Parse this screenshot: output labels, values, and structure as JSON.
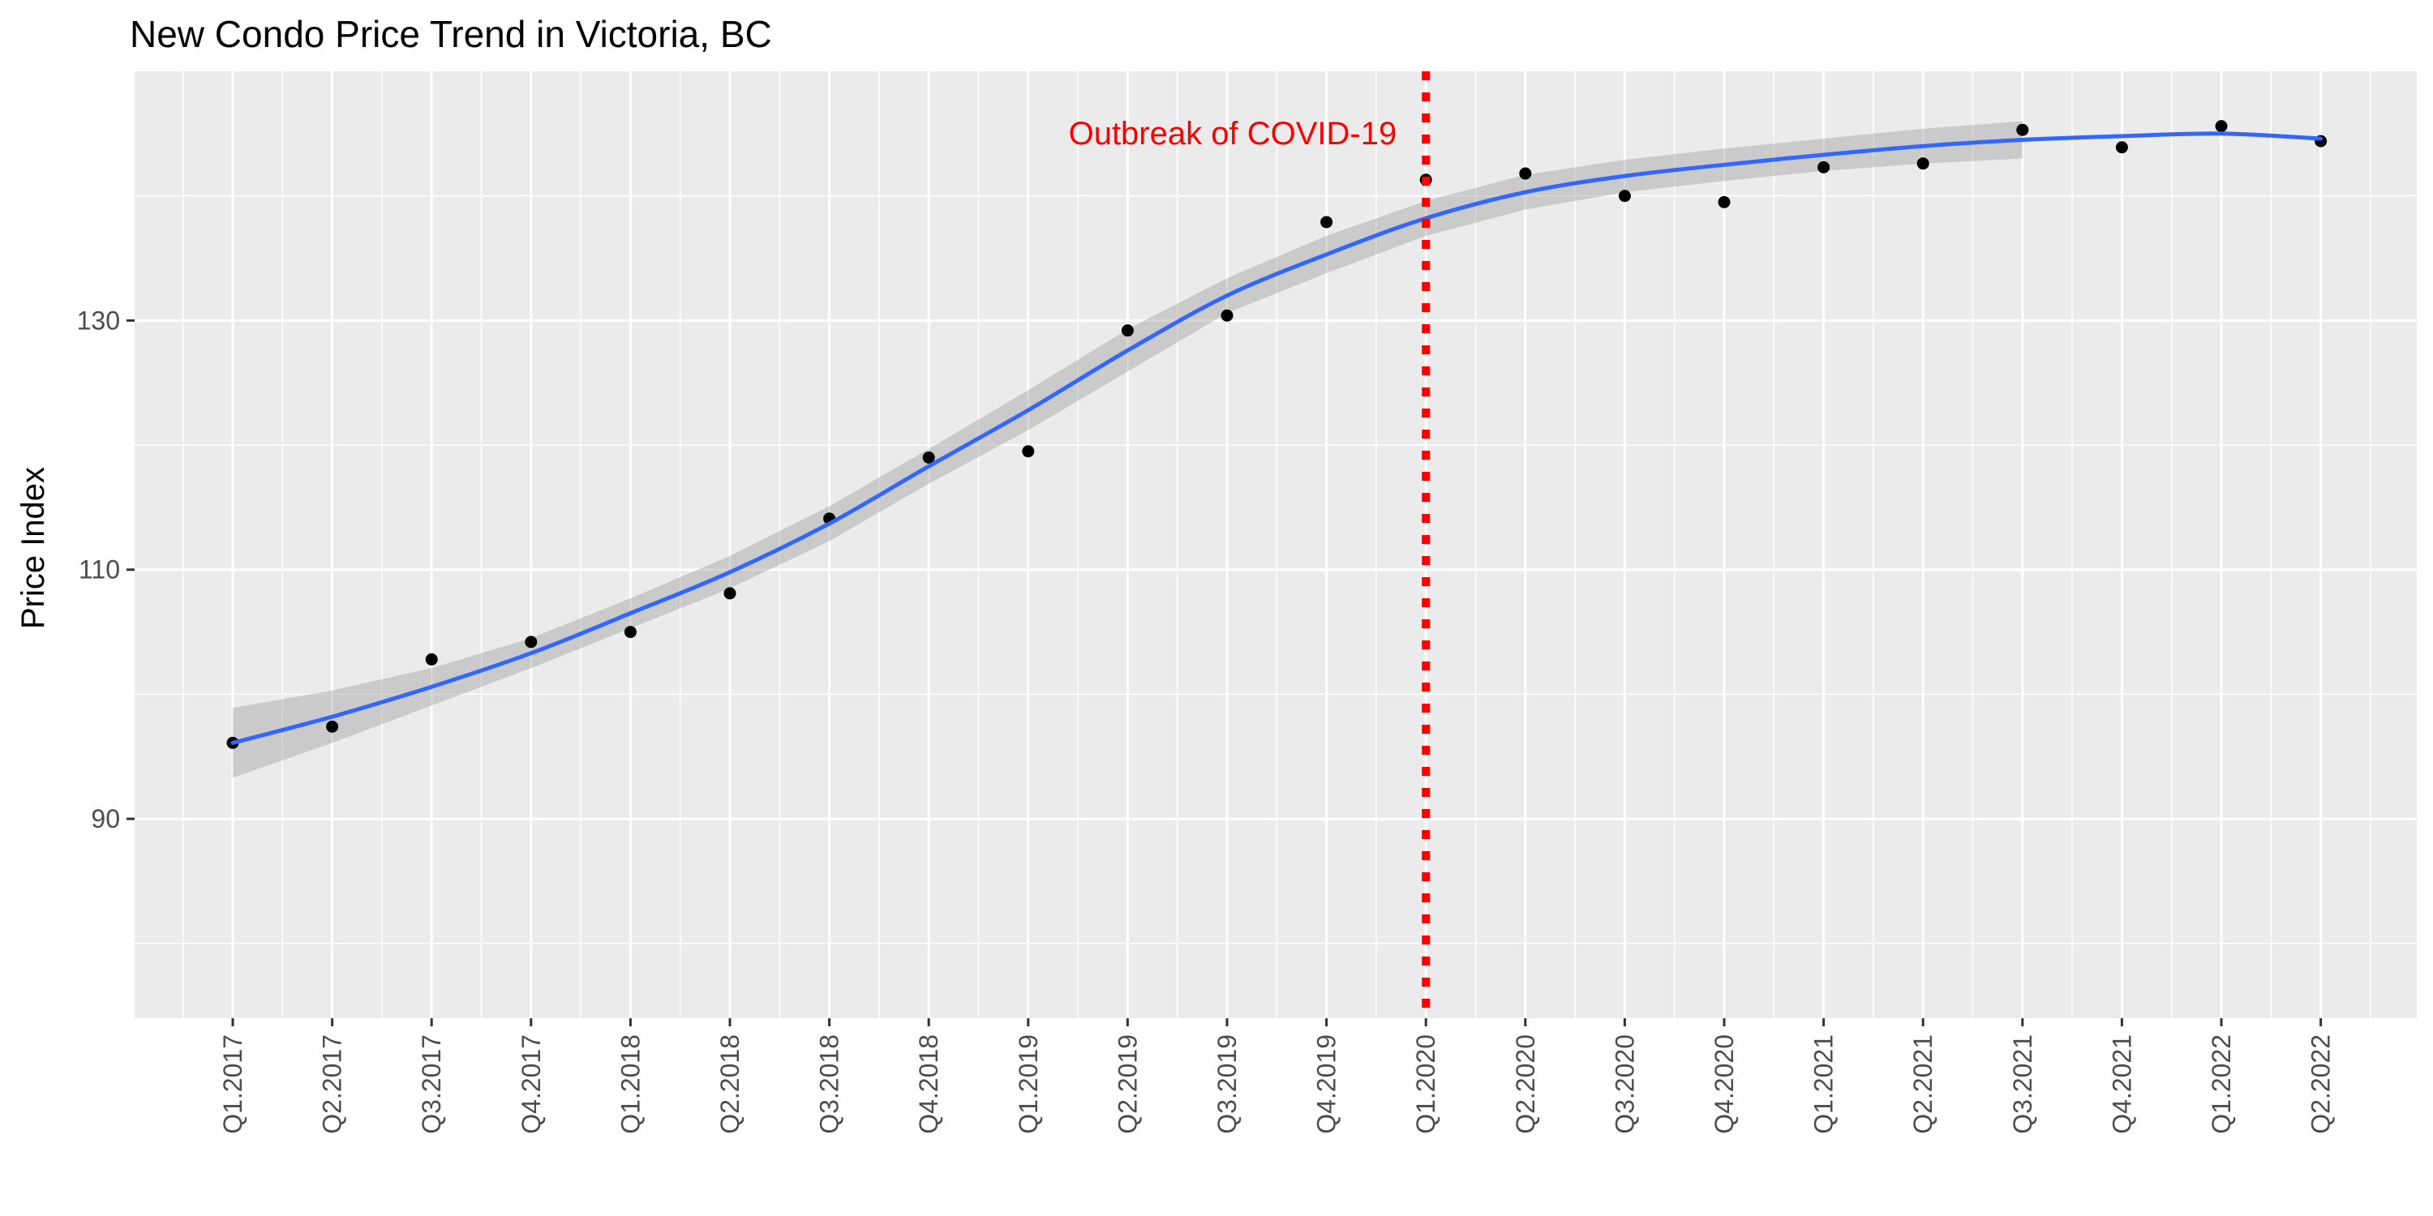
{
  "chart_data": {
    "type": "scatter",
    "title": "New Condo Price Trend in Victoria, BC",
    "xlabel": "",
    "ylabel": "Price Index",
    "categories": [
      "Q1.2017",
      "Q2.2017",
      "Q3.2017",
      "Q4.2017",
      "Q1.2018",
      "Q2.2018",
      "Q3.2018",
      "Q4.2018",
      "Q1.2019",
      "Q2.2019",
      "Q3.2019",
      "Q4.2019",
      "Q1.2020",
      "Q2.2020",
      "Q3.2020",
      "Q4.2020",
      "Q1.2021",
      "Q2.2021",
      "Q3.2021",
      "Q4.2021",
      "Q1.2022",
      "Q2.2022"
    ],
    "values": [
      96.1,
      97.4,
      102.8,
      104.2,
      105.0,
      108.1,
      114.1,
      119.0,
      119.5,
      129.2,
      130.4,
      137.9,
      141.3,
      141.8,
      140.0,
      139.5,
      142.3,
      142.6,
      145.3,
      143.9,
      145.6,
      144.4
    ],
    "smooth": {
      "values": [
        96.1,
        98.2,
        100.6,
        103.3,
        106.5,
        109.8,
        113.7,
        118.3,
        122.8,
        127.6,
        132.0,
        135.3,
        138.2,
        140.3,
        141.6,
        142.5,
        143.3,
        144.0,
        144.5,
        144.8,
        145.0,
        144.6
      ],
      "ci_upper": [
        98.9,
        100.3,
        102.1,
        104.5,
        107.7,
        111.1,
        115.1,
        119.7,
        124.4,
        129.3,
        133.4,
        136.8,
        139.6,
        141.7,
        142.9,
        143.8,
        144.6,
        145.4,
        146.0,
        null,
        null,
        null
      ],
      "ci_lower": [
        93.3,
        96.1,
        99.1,
        102.1,
        105.3,
        108.5,
        112.3,
        116.9,
        121.2,
        125.9,
        130.6,
        133.8,
        136.8,
        138.9,
        140.3,
        141.2,
        142.0,
        142.6,
        143.0,
        null,
        null,
        null
      ],
      "color": "#3366ff"
    },
    "ylim": [
      74,
      150
    ],
    "yticks": [
      90,
      110,
      130
    ],
    "grid": true,
    "annotation": {
      "text": "Outbreak of COVID-19",
      "x": "Q1.2020",
      "color": "#ff0000"
    },
    "point_color": "#000000",
    "panel_background": "#ebebeb"
  }
}
